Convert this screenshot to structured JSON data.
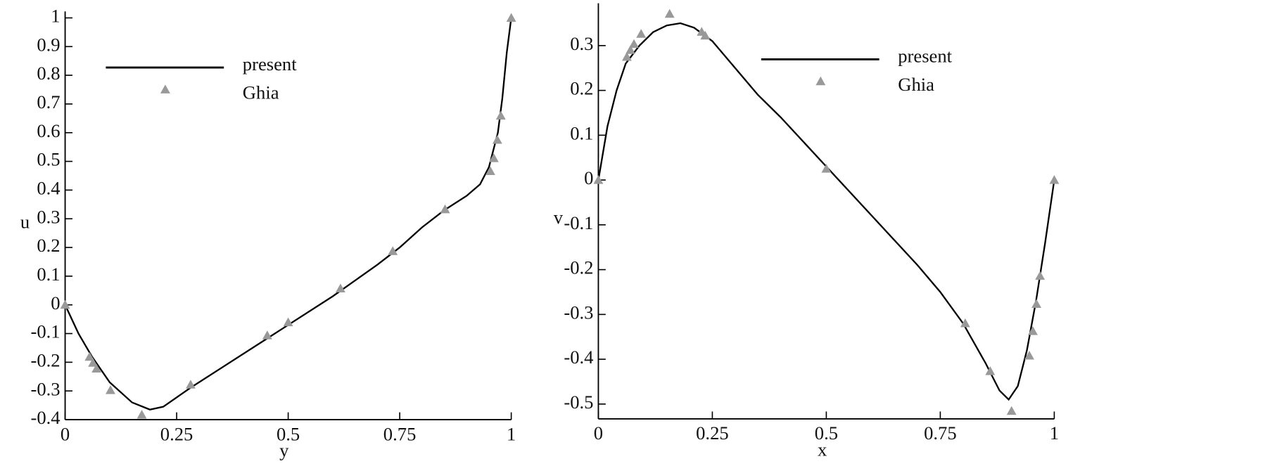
{
  "chart_data": [
    {
      "type": "line",
      "xlabel": "y",
      "ylabel": "u",
      "xlim": [
        0,
        1
      ],
      "xticks": [
        0,
        0.25,
        0.5,
        0.75,
        1
      ],
      "ylim": [
        -0.4,
        1
      ],
      "yticks": [
        -0.4,
        -0.3,
        -0.2,
        -0.1,
        0,
        0.1,
        0.2,
        0.3,
        0.4,
        0.5,
        0.6,
        0.7,
        0.8,
        0.9,
        1
      ],
      "legend": "upper left",
      "series": [
        {
          "name": "present",
          "color": "#000000",
          "mode": "line",
          "x": [
            0,
            0.03,
            0.06,
            0.1,
            0.15,
            0.19,
            0.22,
            0.28,
            0.35,
            0.45,
            0.5,
            0.6,
            0.7,
            0.75,
            0.8,
            0.85,
            0.9,
            0.93,
            0.95,
            0.97,
            0.98,
            0.99,
            1
          ],
          "values": [
            0,
            -0.1,
            -0.18,
            -0.27,
            -0.34,
            -0.365,
            -0.355,
            -0.29,
            -0.22,
            -0.12,
            -0.07,
            0.03,
            0.14,
            0.2,
            0.27,
            0.33,
            0.38,
            0.42,
            0.48,
            0.6,
            0.72,
            0.88,
            1
          ]
        },
        {
          "name": "Ghia",
          "color": "#999999",
          "mode": "markers",
          "marker": "triangle",
          "x": [
            0,
            0.0547,
            0.0625,
            0.0703,
            0.1016,
            0.1719,
            0.2813,
            0.4531,
            0.5,
            0.6172,
            0.7344,
            0.8516,
            0.9531,
            0.9609,
            0.9688,
            0.9766,
            1
          ],
          "values": [
            0,
            -0.18109,
            -0.20196,
            -0.2222,
            -0.2973,
            -0.38289,
            -0.27805,
            -0.10648,
            -0.0608,
            0.05702,
            0.18719,
            0.33304,
            0.46604,
            0.51117,
            0.57492,
            0.65928,
            1
          ]
        }
      ]
    },
    {
      "type": "line",
      "xlabel": "x",
      "ylabel": "v",
      "xlim": [
        0,
        1
      ],
      "xticks": [
        0,
        0.25,
        0.5,
        0.75,
        1
      ],
      "ylim": [
        -0.533,
        0.38
      ],
      "yticks": [
        -0.5,
        -0.4,
        -0.3,
        -0.2,
        -0.1,
        0,
        0.1,
        0.2,
        0.3
      ],
      "legend": "upper center",
      "series": [
        {
          "name": "present",
          "color": "#000000",
          "mode": "line",
          "x": [
            0,
            0.02,
            0.04,
            0.06,
            0.09,
            0.12,
            0.15,
            0.18,
            0.21,
            0.25,
            0.3,
            0.35,
            0.4,
            0.5,
            0.6,
            0.7,
            0.75,
            0.8,
            0.85,
            0.88,
            0.9,
            0.92,
            0.94,
            0.96,
            0.98,
            1
          ],
          "values": [
            0,
            0.12,
            0.2,
            0.26,
            0.3,
            0.33,
            0.345,
            0.35,
            0.34,
            0.31,
            0.25,
            0.19,
            0.14,
            0.03,
            -0.08,
            -0.19,
            -0.25,
            -0.32,
            -0.41,
            -0.47,
            -0.49,
            -0.46,
            -0.38,
            -0.27,
            -0.14,
            0
          ]
        },
        {
          "name": "Ghia",
          "color": "#999999",
          "mode": "markers",
          "marker": "triangle",
          "x": [
            0,
            0.0625,
            0.0703,
            0.0781,
            0.0938,
            0.1563,
            0.2266,
            0.2344,
            0.5,
            0.8047,
            0.8594,
            0.9063,
            0.9453,
            0.9531,
            0.9609,
            0.9688,
            1
          ],
          "values": [
            0,
            0.27485,
            0.29012,
            0.30353,
            0.32627,
            0.37095,
            0.33075,
            0.32235,
            0.02526,
            -0.31966,
            -0.42665,
            -0.5155,
            -0.39188,
            -0.33714,
            -0.27669,
            -0.21388,
            0
          ]
        }
      ]
    }
  ]
}
